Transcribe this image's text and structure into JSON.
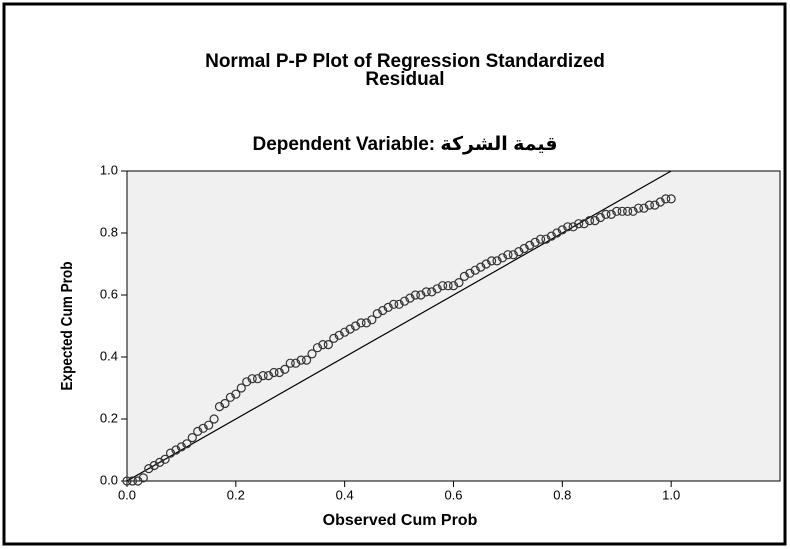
{
  "chart_data": {
    "type": "scatter",
    "title": [
      "Normal P-P Plot of Regression Standardized",
      "Residual"
    ],
    "subtitle": "Dependent Variable: قيمة الشركة",
    "x_label": "Observed Cum Prob",
    "y_label": "Expected Cum Prob",
    "xlim": [
      0,
      1.2
    ],
    "ylim": [
      0,
      1.0
    ],
    "xticks": [
      {
        "value": 0,
        "label": "0.0"
      },
      0.2,
      0.4,
      0.6,
      0.8,
      {
        "value": 1,
        "label": "1.0"
      }
    ],
    "yticks": [
      {
        "value": 0,
        "label": "0.0"
      },
      0.2,
      0.4,
      0.6,
      0.8,
      {
        "value": 1,
        "label": "1.0"
      }
    ],
    "color": "#333333",
    "x": [
      0.0,
      0.01,
      0.02,
      0.03,
      0.04,
      0.05,
      0.06,
      0.07,
      0.08,
      0.09,
      0.1,
      0.11,
      0.12,
      0.13,
      0.14,
      0.15,
      0.16,
      0.17,
      0.18,
      0.19,
      0.2,
      0.21,
      0.22,
      0.23,
      0.24,
      0.25,
      0.26,
      0.27,
      0.28,
      0.29,
      0.3,
      0.31,
      0.32,
      0.33,
      0.34,
      0.35,
      0.36,
      0.37,
      0.38,
      0.39,
      0.4,
      0.41,
      0.42,
      0.43,
      0.44,
      0.45,
      0.46,
      0.47,
      0.48,
      0.49,
      0.5,
      0.51,
      0.52,
      0.53,
      0.54,
      0.55,
      0.56,
      0.57,
      0.58,
      0.59,
      0.6,
      0.61,
      0.62,
      0.63,
      0.64,
      0.65,
      0.66,
      0.67,
      0.68,
      0.69,
      0.7,
      0.71,
      0.72,
      0.73,
      0.74,
      0.75,
      0.76,
      0.77,
      0.78,
      0.79,
      0.8,
      0.81,
      0.82,
      0.83,
      0.84,
      0.85,
      0.86,
      0.87,
      0.88,
      0.89,
      0.9,
      0.91,
      0.92,
      0.93,
      0.94,
      0.95,
      0.96,
      0.97,
      0.98,
      0.99,
      1.0
    ],
    "values": [
      0.0,
      0.0,
      0.0,
      0.01,
      0.04,
      0.05,
      0.06,
      0.07,
      0.09,
      0.1,
      0.11,
      0.12,
      0.14,
      0.16,
      0.17,
      0.18,
      0.2,
      0.24,
      0.25,
      0.27,
      0.28,
      0.3,
      0.32,
      0.33,
      0.33,
      0.34,
      0.34,
      0.35,
      0.35,
      0.36,
      0.38,
      0.38,
      0.39,
      0.39,
      0.41,
      0.43,
      0.44,
      0.44,
      0.46,
      0.47,
      0.48,
      0.49,
      0.5,
      0.51,
      0.51,
      0.52,
      0.54,
      0.55,
      0.56,
      0.57,
      0.57,
      0.58,
      0.59,
      0.6,
      0.6,
      0.61,
      0.61,
      0.62,
      0.63,
      0.63,
      0.63,
      0.64,
      0.66,
      0.67,
      0.68,
      0.69,
      0.7,
      0.71,
      0.71,
      0.72,
      0.73,
      0.73,
      0.74,
      0.75,
      0.76,
      0.77,
      0.78,
      0.78,
      0.79,
      0.8,
      0.81,
      0.82,
      0.82,
      0.83,
      0.83,
      0.84,
      0.84,
      0.85,
      0.86,
      0.86,
      0.87,
      0.87,
      0.87,
      0.87,
      0.88,
      0.88,
      0.89,
      0.89,
      0.9,
      0.91,
      0.91
    ],
    "reference_line": {
      "x": [
        0,
        1
      ],
      "values": [
        0,
        1
      ]
    }
  }
}
